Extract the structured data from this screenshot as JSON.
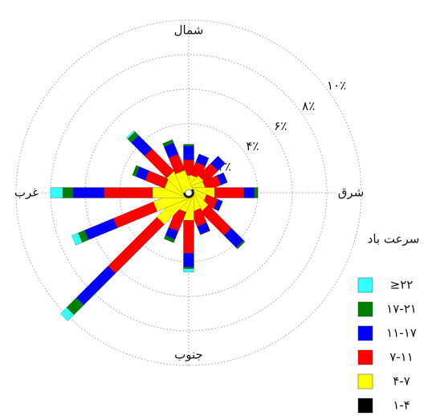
{
  "chart_data": {
    "type": "wind_rose",
    "legend_title": "سرعت باد",
    "categories": [
      "شمال",
      null,
      null,
      null,
      "شرق",
      null,
      null,
      null,
      "جنوب",
      null,
      null,
      null,
      "غرب",
      null,
      null,
      null
    ],
    "series": [
      {
        "name": "≥۲۲",
        "color": "#33ffff",
        "values": [
          0,
          0,
          0,
          0,
          0,
          0,
          0,
          0,
          0.2,
          0,
          0.5,
          0.4,
          0.7,
          0,
          0.1,
          0
        ]
      },
      {
        "name": "۱۷-۲۱",
        "color": "#008000",
        "values": [
          0.1,
          0,
          0,
          0,
          0.2,
          0,
          0.1,
          0,
          0.1,
          0.2,
          0.8,
          0.4,
          0.6,
          0.2,
          0.3,
          0.2
        ]
      },
      {
        "name": "۱۱-۱۷",
        "color": "#0000ff",
        "values": [
          0.8,
          0.5,
          0.6,
          0.4,
          0.6,
          0.3,
          1.0,
          0.5,
          0.8,
          0.5,
          2.6,
          1.8,
          1.8,
          0.6,
          1.1,
          0.7
        ]
      },
      {
        "name": "۷-۱۱",
        "color": "#ff0000",
        "values": [
          0.9,
          0.8,
          1.0,
          0.9,
          1.7,
          0.7,
          1.9,
          0.9,
          1.9,
          1.2,
          4.0,
          2.5,
          2.8,
          1.2,
          1.8,
          1.0
        ]
      },
      {
        "name": "۴-۷",
        "color": "#ffff00",
        "values": [
          0.9,
          0.9,
          1.0,
          0.9,
          1.4,
          0.9,
          1.2,
          1.0,
          1.5,
          1.0,
          2.2,
          2.0,
          2.0,
          1.3,
          1.4,
          1.2
        ]
      },
      {
        "name": "۱-۴",
        "color": "#000000",
        "values": [
          0.1,
          0.1,
          0.1,
          0.1,
          0.1,
          0.1,
          0.1,
          0.1,
          0.1,
          0.1,
          0.1,
          0.1,
          0.1,
          0.1,
          0.1,
          0.1
        ]
      }
    ],
    "ylim": [
      0,
      10
    ],
    "yticks": [
      {
        "value": 2,
        "label": "۲٪"
      },
      {
        "value": 4,
        "label": "۴٪"
      },
      {
        "value": 6,
        "label": "۶٪"
      },
      {
        "value": 8,
        "label": "۸٪"
      },
      {
        "value": 10,
        "label": "۱۰٪"
      }
    ],
    "grid": true
  }
}
